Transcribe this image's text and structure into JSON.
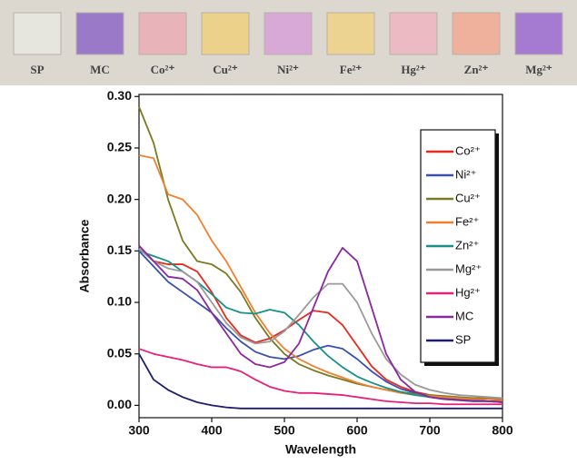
{
  "photo_strip": {
    "labels": [
      "SP",
      "MC",
      "Co²⁺",
      "Cu²⁺",
      "Ni²⁺",
      "Fe²⁺",
      "Hg²⁺",
      "Zn²⁺",
      "Mg²⁺"
    ],
    "colors": [
      "#e6e5de",
      "#9a7ac8",
      "#e9b3ba",
      "#ecd18a",
      "#d8a8d6",
      "#edd392",
      "#ebbac2",
      "#efb09c",
      "#a47bd0"
    ]
  },
  "chart_data": {
    "type": "line",
    "x_label": "Wavelength",
    "y_label": "Absorbance",
    "xlim": [
      300,
      800
    ],
    "xticks": [
      300,
      400,
      500,
      600,
      700,
      800
    ],
    "ylim": [
      -0.012,
      0.302
    ],
    "yticks": [
      {
        "value": 0,
        "label": "0.00"
      },
      0.05,
      {
        "value": 0.1,
        "label": "0.10"
      },
      0.15,
      {
        "value": 0.2,
        "label": "0.20"
      },
      0.25,
      {
        "value": 0.3,
        "label": "0.30"
      }
    ],
    "legend": "upper right",
    "x": [
      300,
      320,
      340,
      360,
      380,
      400,
      420,
      440,
      460,
      480,
      500,
      520,
      540,
      560,
      580,
      600,
      620,
      640,
      660,
      680,
      700,
      720,
      740,
      760,
      780,
      800
    ],
    "series": [
      {
        "name": "Co²⁺",
        "color": "#e8291c",
        "values": [
          0.155,
          0.14,
          0.137,
          0.137,
          0.13,
          0.11,
          0.085,
          0.068,
          0.061,
          0.065,
          0.073,
          0.083,
          0.092,
          0.09,
          0.078,
          0.058,
          0.038,
          0.025,
          0.018,
          0.013,
          0.01,
          0.008,
          0.006,
          0.005,
          0.004,
          0.004
        ]
      },
      {
        "name": "Ni²⁺",
        "color": "#3850b0",
        "values": [
          0.15,
          0.135,
          0.12,
          0.11,
          0.1,
          0.09,
          0.075,
          0.062,
          0.052,
          0.047,
          0.045,
          0.048,
          0.054,
          0.058,
          0.055,
          0.045,
          0.033,
          0.023,
          0.016,
          0.012,
          0.009,
          0.007,
          0.006,
          0.005,
          0.004,
          0.003
        ]
      },
      {
        "name": "Cu²⁺",
        "color": "#7a7a22",
        "values": [
          0.29,
          0.255,
          0.2,
          0.16,
          0.14,
          0.137,
          0.128,
          0.11,
          0.085,
          0.065,
          0.05,
          0.04,
          0.034,
          0.029,
          0.025,
          0.021,
          0.018,
          0.015,
          0.013,
          0.011,
          0.01,
          0.009,
          0.008,
          0.007,
          0.007,
          0.006
        ]
      },
      {
        "name": "Fe²⁺",
        "color": "#f08030",
        "values": [
          0.243,
          0.24,
          0.205,
          0.2,
          0.185,
          0.16,
          0.14,
          0.115,
          0.09,
          0.07,
          0.055,
          0.045,
          0.038,
          0.032,
          0.027,
          0.022,
          0.018,
          0.015,
          0.012,
          0.01,
          0.009,
          0.008,
          0.007,
          0.006,
          0.006,
          0.005
        ]
      },
      {
        "name": "Zn²⁺",
        "color": "#1a8f8a",
        "values": [
          0.15,
          0.145,
          0.14,
          0.13,
          0.12,
          0.108,
          0.095,
          0.09,
          0.089,
          0.093,
          0.09,
          0.078,
          0.062,
          0.048,
          0.037,
          0.028,
          0.022,
          0.017,
          0.013,
          0.01,
          0.008,
          0.006,
          0.005,
          0.004,
          0.004,
          0.003
        ]
      },
      {
        "name": "Mg²⁺",
        "color": "#9a9a9a",
        "values": [
          0.152,
          0.14,
          0.133,
          0.13,
          0.12,
          0.1,
          0.08,
          0.066,
          0.06,
          0.062,
          0.072,
          0.088,
          0.105,
          0.118,
          0.118,
          0.1,
          0.07,
          0.045,
          0.03,
          0.02,
          0.015,
          0.012,
          0.01,
          0.009,
          0.008,
          0.007
        ]
      },
      {
        "name": "Hg²⁺",
        "color": "#e8207a",
        "values": [
          0.055,
          0.05,
          0.047,
          0.044,
          0.04,
          0.037,
          0.037,
          0.033,
          0.025,
          0.018,
          0.014,
          0.012,
          0.012,
          0.011,
          0.01,
          0.008,
          0.006,
          0.004,
          0.003,
          0.002,
          0.002,
          0.001,
          0.001,
          0.001,
          0.001,
          0.001
        ]
      },
      {
        "name": "MC",
        "color": "#8a28a0",
        "values": [
          0.155,
          0.14,
          0.125,
          0.123,
          0.112,
          0.09,
          0.07,
          0.05,
          0.04,
          0.037,
          0.042,
          0.06,
          0.095,
          0.13,
          0.153,
          0.14,
          0.095,
          0.05,
          0.025,
          0.013,
          0.008,
          0.006,
          0.005,
          0.004,
          0.004,
          0.003
        ]
      },
      {
        "name": "SP",
        "color": "#1c1c70",
        "values": [
          0.05,
          0.025,
          0.015,
          0.008,
          0.003,
          0,
          -0.002,
          -0.003,
          -0.003,
          -0.003,
          -0.003,
          -0.003,
          -0.003,
          -0.003,
          -0.003,
          -0.003,
          -0.003,
          -0.003,
          -0.003,
          -0.003,
          -0.003,
          -0.003,
          -0.003,
          -0.003,
          -0.003,
          -0.003
        ]
      }
    ]
  }
}
